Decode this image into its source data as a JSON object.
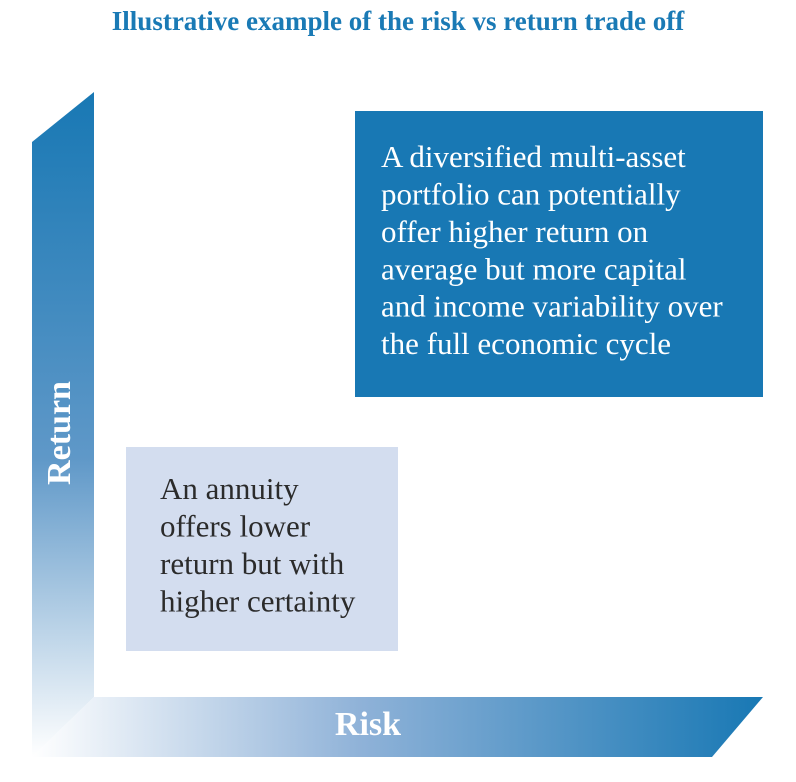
{
  "title": "Illustrative example of the risk vs return trade off",
  "axes": {
    "y_label": "Return",
    "x_label": "Risk"
  },
  "boxes": [
    {
      "lines": [
        "A diversified multi-asset",
        "portfolio can potentially",
        "offer higher return on",
        "average but more capital",
        "and income variability over",
        "the full economic cycle"
      ]
    },
    {
      "lines": [
        "An annuity",
        "offers lower",
        "return but with",
        "higher certainty"
      ]
    }
  ]
}
